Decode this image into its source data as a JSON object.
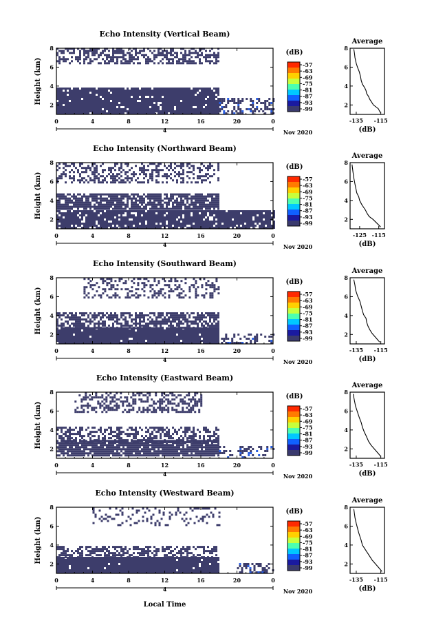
{
  "figure": {
    "xlabel": "Local Time",
    "ylabel": "Height (km)",
    "date_label": "Nov 2020",
    "day_label": "4",
    "colorbar": {
      "unit": "(dB)",
      "ticks": [
        "-57",
        "-63",
        "-69",
        "-75",
        "-81",
        "-87",
        "-93",
        "-99"
      ],
      "colors": [
        "#ff2a00",
        "#ff7a00",
        "#ffd000",
        "#c8ff3c",
        "#4cffb0",
        "#00c8ff",
        "#1060ff",
        "#1a1aa0",
        "#3a3a6e"
      ]
    },
    "average_title": "Average",
    "average_xlabel": "(dB)",
    "mask_color": "#3d3d6b",
    "strong_color": "#2a5ee0"
  },
  "chart_data": [
    {
      "type": "heatmap",
      "title": "Echo Intensity (Vertical Beam)",
      "xlabel": "Local Time",
      "ylabel": "Height (km)",
      "x_ticks": [
        "0",
        "4",
        "8",
        "12",
        "16",
        "20",
        "0"
      ],
      "y_ticks": [
        "2",
        "4",
        "6",
        "8"
      ],
      "xlim": [
        0,
        24
      ],
      "ylim": [
        1,
        8
      ],
      "layers": [
        {
          "x": [
            0,
            18
          ],
          "y": [
            6.3,
            7.9
          ],
          "density": 0.55
        },
        {
          "x": [
            0,
            18
          ],
          "y": [
            1,
            3.8
          ],
          "density": 0.93
        },
        {
          "x": [
            18,
            24
          ],
          "y": [
            1,
            2.6
          ],
          "density": 0.5
        }
      ],
      "average_profile": {
        "xlabel": "(dB)",
        "x_ticks": [
          "-135",
          "-115"
        ],
        "xlim": [
          -140,
          -112
        ],
        "y_ticks": [
          "2",
          "4",
          "6",
          "8"
        ],
        "points": [
          [
            -115.5,
            1.2
          ],
          [
            -117,
            1.6
          ],
          [
            -119,
            1.8
          ],
          [
            -121,
            2.0
          ],
          [
            -122.5,
            2.3
          ],
          [
            -124,
            2.6
          ],
          [
            -125,
            2.9
          ],
          [
            -126.5,
            3.2
          ],
          [
            -127,
            3.5
          ],
          [
            -128,
            3.8
          ],
          [
            -130,
            4.2
          ],
          [
            -131,
            4.6
          ],
          [
            -131.5,
            5.0
          ],
          [
            -132.5,
            5.5
          ],
          [
            -134,
            6.0
          ],
          [
            -135,
            6.4
          ],
          [
            -136,
            7.0
          ],
          [
            -136.5,
            7.5
          ],
          [
            -137,
            7.9
          ]
        ]
      }
    },
    {
      "type": "heatmap",
      "title": "Echo Intensity (Northward Beam)",
      "xlabel": "Local Time",
      "ylabel": "Height (km)",
      "x_ticks": [
        "0",
        "4",
        "8",
        "12",
        "16",
        "20",
        "0"
      ],
      "y_ticks": [
        "2",
        "4",
        "6",
        "8"
      ],
      "xlim": [
        0,
        24
      ],
      "ylim": [
        1,
        8
      ],
      "layers": [
        {
          "x": [
            0,
            18
          ],
          "y": [
            5.8,
            7.9
          ],
          "density": 0.45
        },
        {
          "x": [
            0,
            18
          ],
          "y": [
            3.0,
            4.6
          ],
          "density": 0.8
        },
        {
          "x": [
            0,
            24
          ],
          "y": [
            1,
            2.8
          ],
          "density": 0.88
        }
      ],
      "average_profile": {
        "xlabel": "(dB)",
        "x_ticks": [
          "-125",
          "-115"
        ],
        "xlim": [
          -130,
          -112
        ],
        "y_ticks": [
          "2",
          "4",
          "6",
          "8"
        ],
        "points": [
          [
            -114,
            1.2
          ],
          [
            -116,
            1.6
          ],
          [
            -118,
            2.0
          ],
          [
            -120,
            2.3
          ],
          [
            -121,
            2.6
          ],
          [
            -122,
            3.0
          ],
          [
            -123,
            3.3
          ],
          [
            -124,
            3.6
          ],
          [
            -125,
            4.0
          ],
          [
            -125.5,
            4.4
          ],
          [
            -126.5,
            4.8
          ],
          [
            -127,
            5.3
          ],
          [
            -127.5,
            5.8
          ],
          [
            -128,
            6.3
          ],
          [
            -128.5,
            7.0
          ],
          [
            -129,
            7.8
          ]
        ]
      }
    },
    {
      "type": "heatmap",
      "title": "Echo Intensity (Southward Beam)",
      "xlabel": "Local Time",
      "ylabel": "Height (km)",
      "x_ticks": [
        "0",
        "4",
        "8",
        "12",
        "16",
        "20",
        "0"
      ],
      "y_ticks": [
        "2",
        "4",
        "6",
        "8"
      ],
      "xlim": [
        0,
        24
      ],
      "ylim": [
        1,
        8
      ],
      "layers": [
        {
          "x": [
            3,
            18
          ],
          "y": [
            5.8,
            7.9
          ],
          "density": 0.35
        },
        {
          "x": [
            0,
            18
          ],
          "y": [
            2.6,
            4.2
          ],
          "density": 0.65
        },
        {
          "x": [
            0,
            18
          ],
          "y": [
            1,
            2.6
          ],
          "density": 0.97
        },
        {
          "x": [
            18,
            24
          ],
          "y": [
            1,
            2.0
          ],
          "density": 0.35
        }
      ],
      "average_profile": {
        "xlabel": "(dB)",
        "x_ticks": [
          "-135",
          "-115"
        ],
        "xlim": [
          -140,
          -112
        ],
        "y_ticks": [
          "2",
          "4",
          "6",
          "8"
        ],
        "points": [
          [
            -116,
            1.2
          ],
          [
            -118,
            1.5
          ],
          [
            -120,
            1.8
          ],
          [
            -122,
            2.1
          ],
          [
            -124,
            2.5
          ],
          [
            -125.5,
            2.9
          ],
          [
            -126.5,
            3.3
          ],
          [
            -127,
            3.7
          ],
          [
            -129,
            4.1
          ],
          [
            -130,
            4.5
          ],
          [
            -131,
            5.0
          ],
          [
            -132,
            5.5
          ],
          [
            -134,
            6.1
          ],
          [
            -135.5,
            6.7
          ],
          [
            -136,
            7.2
          ],
          [
            -137,
            7.8
          ]
        ]
      }
    },
    {
      "type": "heatmap",
      "title": "Echo Intensity (Eastward Beam)",
      "xlabel": "Local Time",
      "ylabel": "Height (km)",
      "x_ticks": [
        "0",
        "4",
        "8",
        "12",
        "16",
        "20",
        "0"
      ],
      "y_ticks": [
        "2",
        "4",
        "6",
        "8"
      ],
      "xlim": [
        0,
        24
      ],
      "ylim": [
        1,
        8
      ],
      "layers": [
        {
          "x": [
            2,
            16
          ],
          "y": [
            5.8,
            7.9
          ],
          "density": 0.4
        },
        {
          "x": [
            0,
            18
          ],
          "y": [
            2.6,
            4.2
          ],
          "density": 0.55
        },
        {
          "x": [
            0,
            18
          ],
          "y": [
            1.2,
            2.8
          ],
          "density": 0.9
        },
        {
          "x": [
            18,
            24
          ],
          "y": [
            1,
            2.2
          ],
          "density": 0.25
        }
      ],
      "average_profile": {
        "xlabel": "(dB)",
        "x_ticks": [
          "-135",
          "-115"
        ],
        "xlim": [
          -140,
          -112
        ],
        "y_ticks": [
          "2",
          "4",
          "6",
          "8"
        ],
        "points": [
          [
            -115,
            1.2
          ],
          [
            -117,
            1.5
          ],
          [
            -119,
            1.8
          ],
          [
            -121,
            2.1
          ],
          [
            -123,
            2.4
          ],
          [
            -125,
            2.8
          ],
          [
            -126,
            3.1
          ],
          [
            -127,
            3.4
          ],
          [
            -128.5,
            3.8
          ],
          [
            -130,
            4.3
          ],
          [
            -131,
            4.8
          ],
          [
            -132.5,
            5.3
          ],
          [
            -134,
            5.9
          ],
          [
            -135.5,
            6.5
          ],
          [
            -136.5,
            7.1
          ],
          [
            -137.5,
            7.8
          ]
        ]
      }
    },
    {
      "type": "heatmap",
      "title": "Echo Intensity (Westward Beam)",
      "xlabel": "Local Time",
      "ylabel": "Height (km)",
      "x_ticks": [
        "0",
        "4",
        "8",
        "12",
        "16",
        "20",
        "0"
      ],
      "y_ticks": [
        "2",
        "4",
        "6",
        "8"
      ],
      "xlim": [
        0,
        24
      ],
      "ylim": [
        1,
        8
      ],
      "layers": [
        {
          "x": [
            4,
            18
          ],
          "y": [
            6.0,
            7.9
          ],
          "density": 0.2
        },
        {
          "x": [
            0,
            18
          ],
          "y": [
            2.6,
            3.8
          ],
          "density": 0.55
        },
        {
          "x": [
            0,
            18
          ],
          "y": [
            1,
            2.6
          ],
          "density": 0.97
        },
        {
          "x": [
            20,
            24
          ],
          "y": [
            1,
            2.0
          ],
          "density": 0.55
        }
      ],
      "average_profile": {
        "xlabel": "(dB)",
        "x_ticks": [
          "-135",
          "-115"
        ],
        "xlim": [
          -140,
          -112
        ],
        "y_ticks": [
          "2",
          "4",
          "6",
          "8"
        ],
        "points": [
          [
            -114,
            1.2
          ],
          [
            -116,
            1.5
          ],
          [
            -118,
            1.8
          ],
          [
            -120,
            2.1
          ],
          [
            -122,
            2.4
          ],
          [
            -124,
            2.8
          ],
          [
            -126,
            3.2
          ],
          [
            -128,
            3.6
          ],
          [
            -130,
            4.0
          ],
          [
            -131,
            4.5
          ],
          [
            -132,
            4.9
          ],
          [
            -133,
            5.3
          ],
          [
            -134,
            5.8
          ],
          [
            -135,
            6.3
          ],
          [
            -136,
            6.9
          ],
          [
            -137,
            7.8
          ]
        ]
      }
    }
  ]
}
